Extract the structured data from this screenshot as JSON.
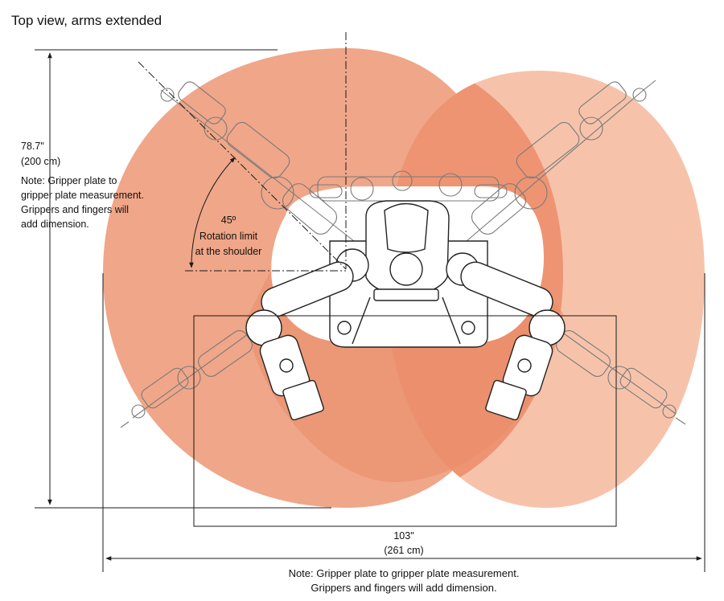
{
  "title": "Top  view, arms extended",
  "height_dimension": {
    "value": "78.7\"",
    "metric": "(200 cm)",
    "note_lines": [
      "Note: Gripper plate to",
      "gripper plate measurement.",
      "Grippers and fingers will",
      "add dimension."
    ]
  },
  "rotation": {
    "angle": "45º",
    "line1": "Rotation limit",
    "line2": "at the shoulder"
  },
  "width_dimension": {
    "value": "103\"",
    "metric": "(261 cm)",
    "note_line1": "Note: Gripper plate to gripper plate measurement.",
    "note_line2": "Grippers and fingers will add dimension."
  },
  "colors": {
    "left_reach": "#ef9e7e",
    "right_reach": "#f6c3aa",
    "overlap": "#ee9472",
    "line": "#1a1a1a",
    "robot_stroke": "#222222",
    "ghost_stroke": "#7a7a7a"
  }
}
